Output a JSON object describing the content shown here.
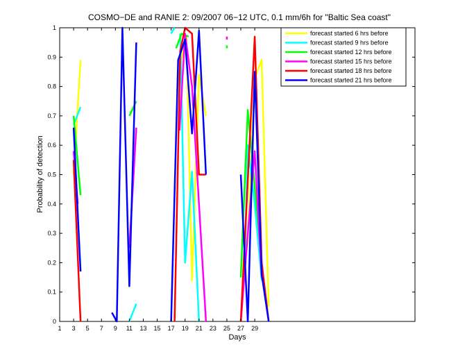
{
  "chart_data": {
    "type": "line",
    "title": "COSMO−DE and RANIE 2: 09/2007 06−12 UTC, 0.1 mm/6h for \"Baltic Sea coast\"",
    "xlabel": "Days",
    "ylabel": "Probability of detection",
    "xlim": [
      1,
      52
    ],
    "ylim": [
      0,
      1
    ],
    "xticks": [
      1,
      3,
      5,
      7,
      9,
      11,
      13,
      15,
      17,
      19,
      21,
      23,
      25,
      27,
      29
    ],
    "yticks": [
      0,
      0.1,
      0.2,
      0.3,
      0.4,
      0.5,
      0.6,
      0.7,
      0.8,
      0.9,
      1
    ],
    "grid": false,
    "legend_position": "top-right",
    "series": [
      {
        "name": "forecast started 6 hrs before",
        "color": "#ffff00",
        "segments": [
          [
            [
              3,
              0.5
            ],
            [
              4,
              0.89
            ]
          ],
          [
            [
              17.8,
              0.78
            ],
            [
              18.5,
              0.9
            ],
            [
              19.2,
              0.97
            ],
            [
              20,
              0.14
            ],
            [
              21,
              0.84
            ],
            [
              22,
              0.7
            ]
          ],
          [
            [
              25,
              0.96
            ],
            [
              25,
              0.97
            ]
          ],
          [
            [
              27.2,
              0.1
            ],
            [
              28,
              0.28
            ],
            [
              29,
              0.83
            ],
            [
              30,
              0.89
            ],
            [
              31,
              0.05
            ]
          ]
        ]
      },
      {
        "name": "forecast started 9 hrs before",
        "color": "#00ffff",
        "segments": [
          [
            [
              3,
              0.67
            ],
            [
              4,
              0.73
            ]
          ],
          [
            [
              11,
              0.0
            ],
            [
              12,
              0.06
            ]
          ],
          [
            [
              17,
              0.98
            ],
            [
              17.5,
              1.0
            ]
          ],
          [
            [
              18.3,
              0.98
            ],
            [
              19,
              0.2
            ],
            [
              20,
              0.51
            ],
            [
              21,
              0.0
            ]
          ],
          [
            [
              27.5,
              0.15
            ],
            [
              28,
              0.6
            ],
            [
              29,
              0.4
            ],
            [
              30,
              0.14
            ]
          ]
        ]
      },
      {
        "name": "forecast started 12 hrs before",
        "color": "#00ff00",
        "segments": [
          [
            [
              3,
              0.7
            ],
            [
              4,
              0.43
            ]
          ],
          [
            [
              11,
              0.7
            ],
            [
              12,
              0.75
            ]
          ],
          [
            [
              17.7,
              0.93
            ],
            [
              18.5,
              0.98
            ],
            [
              19.5,
              0.97
            ]
          ],
          [
            [
              25,
              0.93
            ],
            [
              25,
              0.94
            ]
          ],
          [
            [
              27,
              0.15
            ],
            [
              28,
              0.72
            ],
            [
              29,
              0.46
            ],
            [
              30,
              0.2
            ]
          ]
        ]
      },
      {
        "name": "forecast started 15 hrs before",
        "color": "#ff00ff",
        "segments": [
          [
            [
              3,
              0.58
            ],
            [
              3.6,
              0.4
            ]
          ],
          [
            [
              11,
              0.25
            ],
            [
              12,
              0.66
            ]
          ],
          [
            [
              18.2,
              0.65
            ],
            [
              19,
              0.98
            ],
            [
              20,
              0.8
            ],
            [
              22,
              0.0
            ]
          ],
          [
            [
              25,
              0.96
            ],
            [
              25,
              0.97
            ]
          ],
          [
            [
              27,
              0.0
            ],
            [
              28,
              0.3
            ],
            [
              29,
              0.58
            ],
            [
              30,
              0.15
            ]
          ]
        ]
      },
      {
        "name": "forecast started 18 hrs before",
        "color": "#ff0000",
        "segments": [
          [
            [
              3,
              0.55
            ],
            [
              4,
              0.0
            ]
          ],
          [
            [
              17.5,
              0.0
            ],
            [
              18.3,
              0.92
            ],
            [
              19,
              1.0
            ],
            [
              20,
              0.98
            ],
            [
              21,
              0.5
            ],
            [
              22,
              0.5
            ]
          ],
          [
            [
              27,
              0.0
            ],
            [
              28,
              0.48
            ],
            [
              29,
              0.97
            ],
            [
              30,
              0.2
            ],
            [
              31,
              0.0
            ]
          ]
        ]
      },
      {
        "name": "forecast started 21 hrs before",
        "color": "#0000ff",
        "segments": [
          [
            [
              3,
              0.66
            ],
            [
              4,
              0.17
            ]
          ],
          [
            [
              8.5,
              0.03
            ],
            [
              9.2,
              0.0
            ],
            [
              10,
              1.0
            ],
            [
              11,
              0.12
            ],
            [
              12,
              0.95
            ]
          ],
          [
            [
              17,
              0.0
            ],
            [
              18,
              0.89
            ],
            [
              19,
              0.96
            ],
            [
              20,
              0.64
            ],
            [
              21,
              0.99
            ],
            [
              22,
              0.5
            ]
          ],
          [
            [
              27,
              0.5
            ],
            [
              28,
              0.0
            ],
            [
              29,
              0.85
            ],
            [
              30,
              0.16
            ],
            [
              31,
              0.0
            ]
          ]
        ]
      }
    ]
  }
}
